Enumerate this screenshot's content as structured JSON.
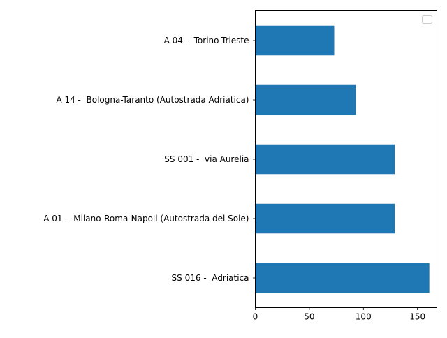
{
  "chart_data": {
    "type": "bar",
    "orientation": "horizontal",
    "categories": [
      "SS 016 -  Adriatica",
      "A 01 -  Milano-Roma-Napoli (Autostrada del Sole)",
      "SS 001 -  via Aurelia",
      "A 14 -  Bologna-Taranto (Autostrada Adriatica)",
      "A 04 -  Torino-Trieste"
    ],
    "values": [
      161,
      129,
      129,
      93,
      73
    ],
    "xlim": [
      0,
      168
    ],
    "xticks": [
      0,
      50,
      100,
      150
    ],
    "xtick_labels": [
      "0",
      "50",
      "100",
      "150"
    ],
    "title": "",
    "xlabel": "",
    "ylabel": "",
    "grid": false,
    "legend_placement": "top-right",
    "legend_entries": [],
    "bar_color": "#1f77b4"
  }
}
